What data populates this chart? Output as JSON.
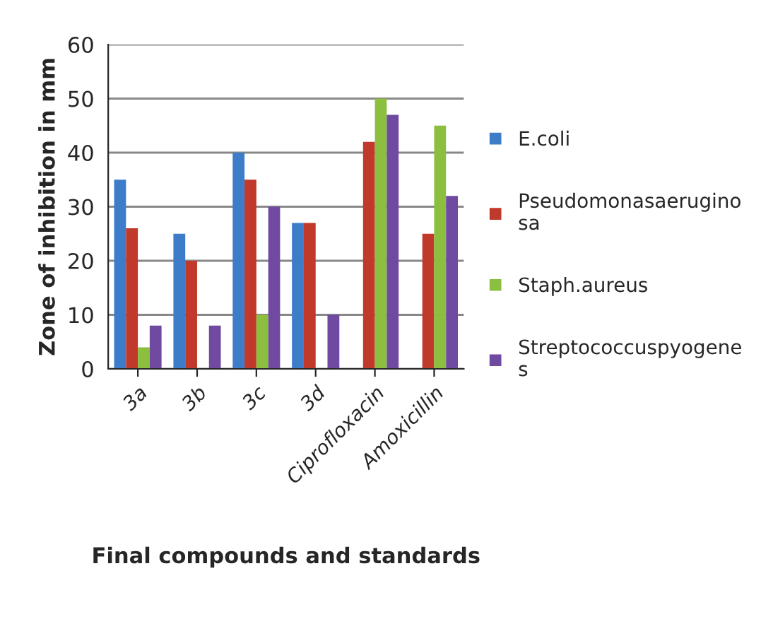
{
  "chart_data": {
    "type": "bar",
    "xlabel": "Final compounds and standards",
    "ylabel": "Zone of inhibition in mm",
    "categories": [
      "3a",
      "3b",
      "3c",
      "3d",
      "Ciprofloxacin",
      "Amoxicillin"
    ],
    "series": [
      {
        "name": "E.coli",
        "color": "#3d7cc9",
        "values": [
          35,
          25,
          40,
          27,
          null,
          null
        ]
      },
      {
        "name": "Pseudomonasaerugino\nsa",
        "color": "#c0392b",
        "values": [
          26,
          20,
          35,
          27,
          42,
          25
        ]
      },
      {
        "name": "Staph.aureus",
        "color": "#8cbf3f",
        "values": [
          4,
          null,
          10,
          null,
          50,
          45
        ]
      },
      {
        "name": "Streptococcuspyogene\ns",
        "color": "#6f4aa0",
        "values": [
          8,
          8,
          30,
          10,
          47,
          32
        ]
      }
    ],
    "ylim": [
      0,
      60
    ],
    "yticks": [
      0,
      10,
      20,
      30,
      40,
      50,
      60
    ],
    "grid": "y",
    "legend": "right"
  }
}
